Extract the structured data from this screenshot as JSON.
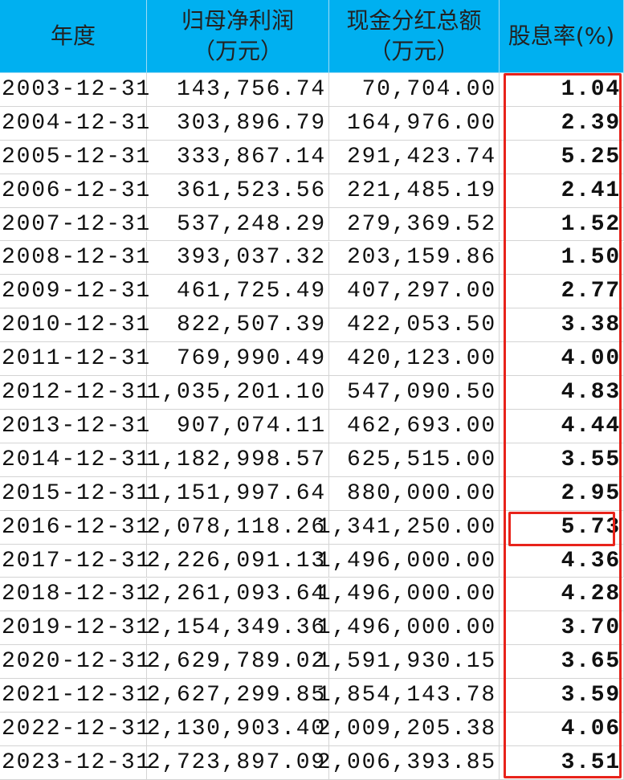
{
  "table": {
    "header": [
      [
        "年度"
      ],
      [
        "归母净利润",
        "（万元）"
      ],
      [
        "现金分红总额",
        "（万元）"
      ],
      [
        "股息率(%)"
      ]
    ],
    "rows": [
      [
        "2003-12-31",
        "143,756.74",
        "70,704.00",
        "1.04"
      ],
      [
        "2004-12-31",
        "303,896.79",
        "164,976.00",
        "2.39"
      ],
      [
        "2005-12-31",
        "333,867.14",
        "291,423.74",
        "5.25"
      ],
      [
        "2006-12-31",
        "361,523.56",
        "221,485.19",
        "2.41"
      ],
      [
        "2007-12-31",
        "537,248.29",
        "279,369.52",
        "1.52"
      ],
      [
        "2008-12-31",
        "393,037.32",
        "203,159.86",
        "1.50"
      ],
      [
        "2009-12-31",
        "461,725.49",
        "407,297.00",
        "2.77"
      ],
      [
        "2010-12-31",
        "822,507.39",
        "422,053.50",
        "3.38"
      ],
      [
        "2011-12-31",
        "769,990.49",
        "420,123.00",
        "4.00"
      ],
      [
        "2012-12-31",
        "1,035,201.10",
        "547,090.50",
        "4.83"
      ],
      [
        "2013-12-31",
        "907,074.11",
        "462,693.00",
        "4.44"
      ],
      [
        "2014-12-31",
        "1,182,998.57",
        "625,515.00",
        "3.55"
      ],
      [
        "2015-12-31",
        "1,151,997.64",
        "880,000.00",
        "2.95"
      ],
      [
        "2016-12-31",
        "2,078,118.26",
        "1,341,250.00",
        "5.73"
      ],
      [
        "2017-12-31",
        "2,226,091.13",
        "1,496,000.00",
        "4.36"
      ],
      [
        "2018-12-31",
        "2,261,093.64",
        "1,496,000.00",
        "4.28"
      ],
      [
        "2019-12-31",
        "2,154,349.36",
        "1,496,000.00",
        "3.70"
      ],
      [
        "2020-12-31",
        "2,629,789.02",
        "1,591,930.15",
        "3.65"
      ],
      [
        "2021-12-31",
        "2,627,299.85",
        "1,854,143.78",
        "3.59"
      ],
      [
        "2022-12-31",
        "2,130,903.40",
        "2,009,205.38",
        "4.06"
      ],
      [
        "2023-12-31",
        "2,723,897.09",
        "2,006,393.85",
        "3.51"
      ]
    ]
  }
}
